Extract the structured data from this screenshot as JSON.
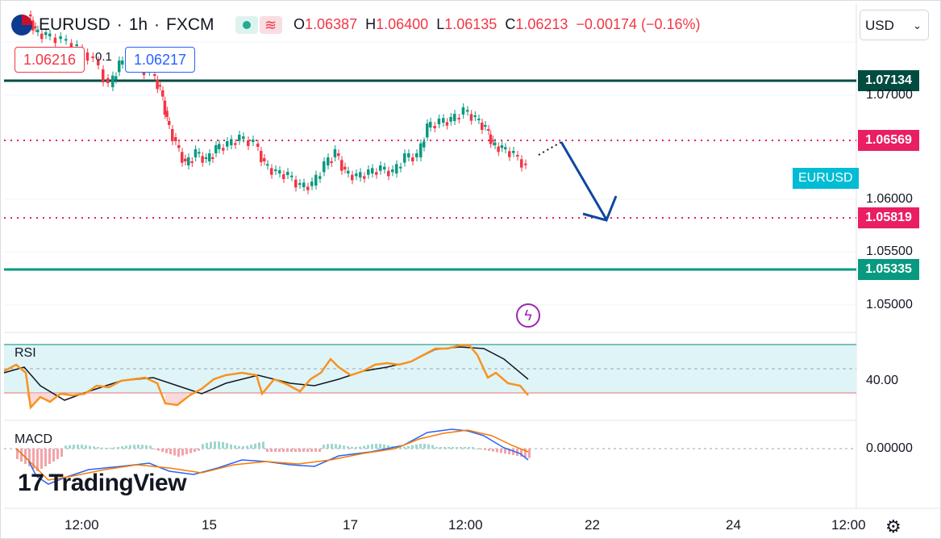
{
  "header": {
    "symbol": "EURUSD",
    "sep1": "·",
    "interval": "1h",
    "sep2": "·",
    "exchange": "FXCM",
    "open_key": "O",
    "open": "1.06387",
    "high_key": "H",
    "high": "1.06400",
    "low_key": "L",
    "low": "1.06135",
    "close_key": "C",
    "close": "1.06213",
    "change": "−0.00174 (−0.16%)",
    "wave_icon": "≋"
  },
  "trade": {
    "sell_price": "1.06216",
    "spread": "0.1",
    "buy_price": "1.06217"
  },
  "currency_select": {
    "value": "USD",
    "chevron": "⌄"
  },
  "price_tags": [
    {
      "value": "1.07134",
      "color": "#004d40"
    },
    {
      "value": "1.06569",
      "color": "#e91e63"
    },
    {
      "value": "1.05819",
      "color": "#e91e63"
    },
    {
      "value": "1.05335",
      "color": "#089981"
    }
  ],
  "price_axis": [
    "1.07000",
    "1.06000",
    "1.05500",
    "1.05000"
  ],
  "series_label": "EURUSD",
  "rsi": {
    "label": "RSI",
    "level": "40.00"
  },
  "macd": {
    "label": "MACD",
    "level": "0.00000"
  },
  "time_axis": [
    "12:00",
    "15",
    "17",
    "12:00",
    "22",
    "24",
    "12:00"
  ],
  "brand": {
    "mark": "17",
    "name": "TradingView"
  },
  "flash_icon": "ϟ",
  "settings_icon": "⚙"
}
